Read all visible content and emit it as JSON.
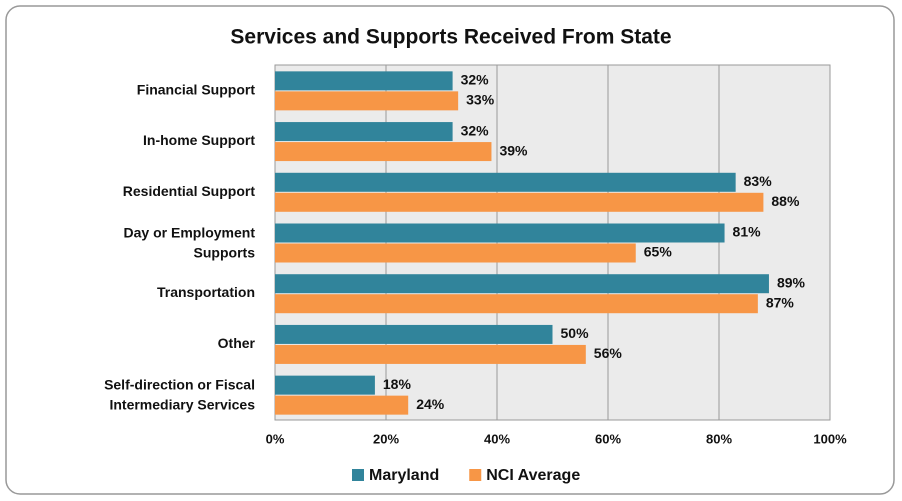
{
  "chart_data": {
    "type": "bar",
    "orientation": "horizontal",
    "title": "Services and Supports Received From State",
    "categories": [
      [
        "Financial Support"
      ],
      [
        "In-home Support"
      ],
      [
        "Residential Support"
      ],
      [
        "Day or Employment",
        "Supports"
      ],
      [
        "Transportation"
      ],
      [
        "Other"
      ],
      [
        "Self-direction or Fiscal",
        "Intermediary Services"
      ]
    ],
    "series": [
      {
        "name": "Maryland",
        "color": "#31849b",
        "values": [
          32,
          32,
          83,
          81,
          89,
          50,
          18
        ],
        "value_labels": [
          "32%",
          "32%",
          "83%",
          "81%",
          "89%",
          "50%",
          "18%"
        ]
      },
      {
        "name": "NCI Average",
        "color": "#f79646",
        "values": [
          33,
          39,
          88,
          65,
          87,
          56,
          24
        ],
        "value_labels": [
          "33%",
          "39%",
          "88%",
          "65%",
          "87%",
          "56%",
          "24%"
        ]
      }
    ],
    "xlim": [
      0,
      100
    ],
    "xticks": [
      {
        "value": 0,
        "label": "0%"
      },
      {
        "value": 20,
        "label": "20%"
      },
      {
        "value": 40,
        "label": "40%"
      },
      {
        "value": 60,
        "label": "60%"
      },
      {
        "value": 80,
        "label": "80%"
      },
      {
        "value": 100,
        "label": "100%"
      }
    ],
    "grid": true,
    "legend": "bottom"
  }
}
